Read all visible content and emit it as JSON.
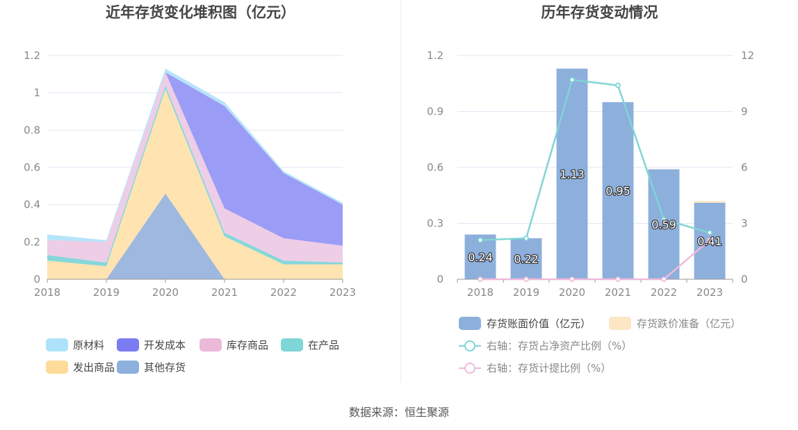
{
  "footer": {
    "source": "数据来源：恒生聚源"
  },
  "left_chart": {
    "title": "近年存货变化堆积图（亿元）",
    "chart_data": {
      "type": "area",
      "stacked": true,
      "categories": [
        "2018",
        "2019",
        "2020",
        "2021",
        "2022",
        "2023"
      ],
      "ylim": [
        0,
        1.2
      ],
      "yticks": [
        "0",
        "0.2",
        "0.4",
        "0.6",
        "0.8",
        "1",
        "1.2"
      ],
      "series": [
        {
          "name": "其他存货",
          "color": "#9eb8e0",
          "values": [
            0,
            0,
            0.46,
            0,
            0,
            0
          ]
        },
        {
          "name": "发出商品",
          "color": "#ffe3b0",
          "values": [
            0.1,
            0.07,
            0.56,
            0.23,
            0.08,
            0.08
          ]
        },
        {
          "name": "在产品",
          "color": "#86d7da",
          "values": [
            0.03,
            0.02,
            0.02,
            0.02,
            0.02,
            0.01
          ]
        },
        {
          "name": "库存商品",
          "color": "#eecde6",
          "values": [
            0.08,
            0.11,
            0.07,
            0.13,
            0.12,
            0.09
          ]
        },
        {
          "name": "开发成本",
          "color": "#9b9cf6",
          "values": [
            0,
            0,
            0,
            0.55,
            0.35,
            0.22
          ]
        },
        {
          "name": "原材料",
          "color": "#b6e4fa",
          "values": [
            0.03,
            0.01,
            0.02,
            0.02,
            0.01,
            0.01
          ]
        }
      ],
      "legend": [
        {
          "name": "原材料",
          "color": "#aee2fb"
        },
        {
          "name": "开发成本",
          "color": "#7b7cf2"
        },
        {
          "name": "库存商品",
          "color": "#ebbad9"
        },
        {
          "name": "在产品",
          "color": "#7fd6d6"
        },
        {
          "name": "发出商品",
          "color": "#ffdb9a"
        },
        {
          "name": "其他存货",
          "color": "#8eb0dc"
        }
      ]
    }
  },
  "right_chart": {
    "title": "历年存货变动情况",
    "chart_data": {
      "type": "bar",
      "categories": [
        "2018",
        "2019",
        "2020",
        "2021",
        "2022",
        "2023"
      ],
      "ylim": [
        0,
        1.2
      ],
      "yticks": [
        "0",
        "0.3",
        "0.6",
        "0.9",
        "1.2"
      ],
      "y2lim": [
        0,
        12
      ],
      "y2ticks": [
        "0",
        "3",
        "6",
        "9",
        "12"
      ],
      "series": [
        {
          "name": "存货账面价值（亿元）",
          "type": "bar",
          "axis": "left",
          "color": "#8dafdc",
          "values": [
            0.24,
            0.22,
            1.13,
            0.95,
            0.59,
            0.41
          ],
          "labels": [
            "0.24",
            "0.22",
            "1.13",
            "0.95",
            "0.59",
            "0.41"
          ]
        },
        {
          "name": "存货跌价准备（亿元）",
          "type": "bar",
          "axis": "left",
          "color": "#fde6c4",
          "values": [
            0,
            0,
            0,
            0,
            0,
            0.01
          ]
        },
        {
          "name": "右轴：存货占净资产比例（%）",
          "type": "line",
          "axis": "right",
          "color": "#7fd5d4",
          "values": [
            2.1,
            2.2,
            10.7,
            10.4,
            3.2,
            2.5
          ]
        },
        {
          "name": "右轴：存货计提比例（%）",
          "type": "line",
          "axis": "right",
          "color": "#eebadb",
          "values": [
            0,
            0,
            0,
            0,
            0,
            2.1
          ]
        }
      ]
    }
  }
}
